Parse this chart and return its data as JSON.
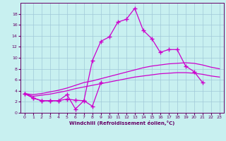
{
  "background_color": "#c8f0f0",
  "line_color": "#cc00cc",
  "grid_color": "#a0c8d8",
  "xlabel": "Windchill (Refroidissement éolien,°C)",
  "xlabel_color": "#660066",
  "tick_color": "#660066",
  "xlim": [
    -0.5,
    23.5
  ],
  "ylim": [
    0,
    20
  ],
  "xticks": [
    0,
    1,
    2,
    3,
    4,
    5,
    6,
    7,
    8,
    9,
    10,
    11,
    12,
    13,
    14,
    15,
    16,
    17,
    18,
    19,
    20,
    21,
    22,
    23
  ],
  "yticks": [
    0,
    2,
    4,
    6,
    8,
    10,
    12,
    14,
    16,
    18
  ],
  "line1_x": [
    0,
    1,
    2,
    3,
    4,
    5,
    6,
    7,
    8,
    9,
    10,
    11,
    12,
    13,
    14,
    15,
    16,
    17,
    18,
    19,
    20,
    21
  ],
  "line1_y": [
    3.5,
    2.7,
    2.2,
    2.2,
    2.2,
    2.5,
    2.3,
    2.2,
    9.5,
    13.0,
    13.8,
    16.5,
    17.0,
    19.0,
    15.0,
    13.5,
    11.0,
    11.5,
    11.5,
    8.5,
    7.5,
    5.5
  ],
  "line2_x": [
    0,
    1,
    2,
    3,
    4,
    5,
    6,
    7,
    8,
    9
  ],
  "line2_y": [
    3.5,
    2.7,
    2.2,
    2.2,
    2.2,
    3.3,
    0.7,
    2.2,
    1.2,
    5.5
  ],
  "line3_x": [
    0,
    1,
    2,
    3,
    4,
    5,
    6,
    7,
    8,
    9,
    10,
    11,
    12,
    13,
    14,
    15,
    16,
    17,
    18,
    19,
    20,
    21,
    22,
    23
  ],
  "line3_y": [
    3.5,
    3.3,
    3.5,
    3.8,
    4.1,
    4.5,
    5.0,
    5.5,
    5.8,
    6.2,
    6.6,
    7.0,
    7.4,
    7.8,
    8.2,
    8.5,
    8.7,
    8.9,
    9.0,
    9.1,
    9.0,
    8.7,
    8.3,
    8.0
  ],
  "line4_x": [
    0,
    1,
    2,
    3,
    4,
    5,
    6,
    7,
    8,
    9,
    10,
    11,
    12,
    13,
    14,
    15,
    16,
    17,
    18,
    19,
    20,
    21,
    22,
    23
  ],
  "line4_y": [
    3.5,
    3.0,
    3.2,
    3.4,
    3.7,
    4.0,
    4.4,
    4.7,
    5.0,
    5.3,
    5.6,
    5.9,
    6.2,
    6.5,
    6.7,
    6.9,
    7.1,
    7.2,
    7.3,
    7.3,
    7.2,
    7.0,
    6.7,
    6.5
  ]
}
